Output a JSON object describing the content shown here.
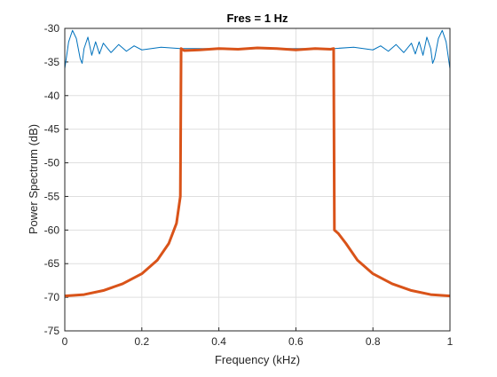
{
  "chart_data": {
    "type": "line",
    "title": "Fres = 1 Hz",
    "xlabel": "Frequency (kHz)",
    "ylabel": "Power Spectrum (dB)",
    "xlim": [
      0,
      1
    ],
    "ylim": [
      -75,
      -30
    ],
    "xticks": [
      0,
      0.2,
      0.4,
      0.6,
      0.8,
      1
    ],
    "yticks": [
      -75,
      -70,
      -65,
      -60,
      -55,
      -50,
      -45,
      -40,
      -35,
      -30
    ],
    "grid": true,
    "series": [
      {
        "color": "#0072bd",
        "x": [
          0,
          0.01,
          0.02,
          0.03,
          0.04,
          0.045,
          0.05,
          0.06,
          0.07,
          0.08,
          0.09,
          0.1,
          0.12,
          0.14,
          0.16,
          0.18,
          0.2,
          0.25,
          0.3,
          0.4,
          0.5,
          0.6,
          0.7,
          0.75,
          0.8,
          0.82,
          0.84,
          0.86,
          0.88,
          0.9,
          0.91,
          0.92,
          0.93,
          0.94,
          0.95,
          0.955,
          0.96,
          0.97,
          0.98,
          0.99,
          1
        ],
        "values": [
          -36,
          -32,
          -30.3,
          -31.5,
          -34.5,
          -35.2,
          -33,
          -31.3,
          -34,
          -32,
          -33.8,
          -32.2,
          -33.6,
          -32.4,
          -33.4,
          -32.6,
          -33.2,
          -32.8,
          -33,
          -33,
          -33,
          -33,
          -33,
          -32.8,
          -33.2,
          -32.6,
          -33.4,
          -32.4,
          -33.6,
          -32.2,
          -33.8,
          -32,
          -34,
          -31.3,
          -33,
          -35.2,
          -34.5,
          -31.5,
          -30.3,
          -32,
          -36
        ]
      },
      {
        "color": "#d95319",
        "x": [
          0,
          0.05,
          0.1,
          0.15,
          0.2,
          0.24,
          0.27,
          0.29,
          0.3,
          0.302,
          0.31,
          0.35,
          0.4,
          0.45,
          0.5,
          0.55,
          0.6,
          0.65,
          0.69,
          0.698,
          0.7,
          0.71,
          0.73,
          0.76,
          0.8,
          0.85,
          0.9,
          0.95,
          1
        ],
        "values": [
          -69.8,
          -69.6,
          -69,
          -68,
          -66.5,
          -64.5,
          -62,
          -59,
          -55,
          -33,
          -33.3,
          -33.2,
          -33,
          -33.1,
          -32.9,
          -33,
          -33.2,
          -33,
          -33.1,
          -33,
          -60,
          -60.5,
          -62,
          -64.5,
          -66.5,
          -68,
          -69,
          -69.6,
          -69.8
        ]
      }
    ]
  }
}
